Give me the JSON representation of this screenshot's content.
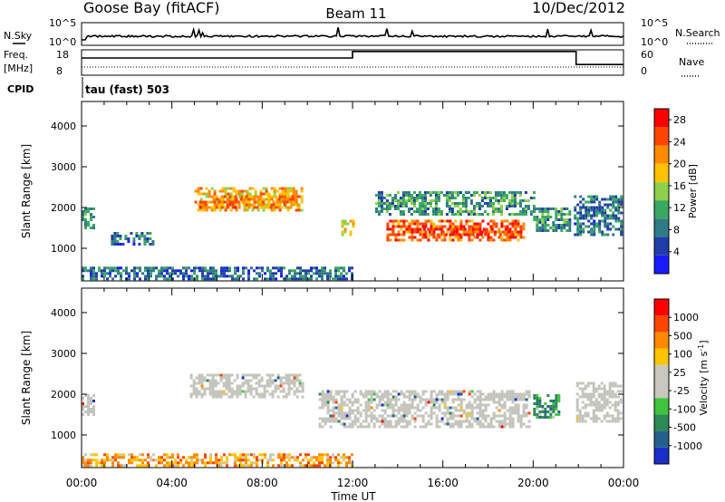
{
  "header": {
    "station": "Goose Bay (fitACF)",
    "beam": "Beam 11",
    "date": "10/Dec/2012"
  },
  "strips": {
    "nsky_label": "N.Sky",
    "nsky_ticks": [
      "10^5",
      "10^0"
    ],
    "nsearch_label": "N.Search",
    "nsearch_ticks": [
      "10^5",
      "10^0"
    ],
    "freq_label": "Freq.",
    "freq_unit": "[MHz]",
    "freq_ticks": [
      "18",
      "8"
    ],
    "nave_label": "Nave",
    "nave_ticks": [
      "60",
      "0"
    ],
    "cpid_label": "CPID",
    "cpid_value": "tau (fast) 503",
    "freq_step": {
      "hours": [
        0,
        12,
        12,
        21.9,
        21.9,
        24
      ],
      "values": [
        15.5,
        15.5,
        18.5,
        18.5,
        12.5,
        12.5
      ]
    }
  },
  "colors": {
    "power": [
      "#1a1aff",
      "#203ea8",
      "#2f7b85",
      "#3aa860",
      "#8fd04a",
      "#ffc200",
      "#ff8a00",
      "#ff4400",
      "#ff0000"
    ],
    "velocity": [
      "#1b2ec8",
      "#24618a",
      "#2d8a55",
      "#3fc43a",
      "#c8c8c0",
      "#c8c8c0",
      "#ffc400",
      "#ff8a00",
      "#ff4400",
      "#ff0000"
    ],
    "ground_scatter": "#c4c4bc"
  },
  "chart_data": [
    {
      "type": "heatmap",
      "name": "Power",
      "title": "",
      "xlabel": "Time UT",
      "ylabel": "Slant Range [km]",
      "x_ticks": [
        "00:00",
        "04:00",
        "08:00",
        "12:00",
        "16:00",
        "20:00",
        "00:00"
      ],
      "xlim_hours": [
        0,
        24
      ],
      "ylim": [
        200,
        4600
      ],
      "y_ticks": [
        1000,
        2000,
        3000,
        4000
      ],
      "colorbar": {
        "label": "Power [dB]",
        "ticks": [
          4,
          8,
          12,
          16,
          20,
          24,
          28
        ],
        "range": [
          0,
          30
        ]
      },
      "regions": [
        {
          "t": [
            5.0,
            9.8
          ],
          "r": [
            1900,
            2500
          ],
          "value": 20,
          "note": "main band"
        },
        {
          "t": [
            5.2,
            9.6
          ],
          "r": [
            2000,
            2300
          ],
          "value": 22
        },
        {
          "t": [
            11.5,
            12.1
          ],
          "r": [
            1300,
            1700
          ],
          "value": 18
        },
        {
          "t": [
            13.5,
            19.6
          ],
          "r": [
            1200,
            1700
          ],
          "value": 24
        },
        {
          "t": [
            15.0,
            19.0
          ],
          "r": [
            1300,
            1500
          ],
          "value": 26
        },
        {
          "t": [
            13.0,
            20.0
          ],
          "r": [
            1800,
            2400
          ],
          "value": 10
        },
        {
          "t": [
            0.0,
            0.5
          ],
          "r": [
            1500,
            2000
          ],
          "value": 9
        },
        {
          "t": [
            1.3,
            3.2
          ],
          "r": [
            1100,
            1400
          ],
          "value": 7
        },
        {
          "t": [
            20.0,
            21.6
          ],
          "r": [
            1400,
            2000
          ],
          "value": 10
        },
        {
          "t": [
            21.8,
            23.9
          ],
          "r": [
            1300,
            2300
          ],
          "value": 8
        },
        {
          "t": [
            0.0,
            12.0
          ],
          "r": [
            250,
            550
          ],
          "value": 7,
          "note": "near-range scatter"
        }
      ]
    },
    {
      "type": "heatmap",
      "name": "Velocity",
      "title": "",
      "xlabel": "Time UT",
      "ylabel": "Slant Range [km]",
      "x_ticks": [
        "00:00",
        "04:00",
        "08:00",
        "12:00",
        "16:00",
        "20:00",
        "00:00"
      ],
      "xlim_hours": [
        0,
        24
      ],
      "ylim": [
        200,
        4600
      ],
      "y_ticks": [
        1000,
        2000,
        3000,
        4000
      ],
      "colorbar": {
        "label": "Velocity [m s-1]",
        "ticks": [
          "1000",
          "500",
          "100",
          "25",
          "-25",
          "-100",
          "-500",
          "-1000"
        ]
      },
      "regions": [
        {
          "t": [
            4.8,
            9.8
          ],
          "r": [
            1900,
            2500
          ],
          "value": "ground_scatter"
        },
        {
          "t": [
            10.5,
            19.8
          ],
          "r": [
            1200,
            2100
          ],
          "value": "ground_scatter"
        },
        {
          "t": [
            0.0,
            0.5
          ],
          "r": [
            1500,
            2000
          ],
          "value": "ground_scatter"
        },
        {
          "t": [
            20.0,
            21.2
          ],
          "r": [
            1400,
            2000
          ],
          "value": 100
        },
        {
          "t": [
            21.9,
            23.9
          ],
          "r": [
            1300,
            2300
          ],
          "value": "ground_scatter"
        },
        {
          "t": [
            0.0,
            12.0
          ],
          "r": [
            250,
            550
          ],
          "value": -100,
          "note": "near-range scatter"
        }
      ]
    }
  ]
}
